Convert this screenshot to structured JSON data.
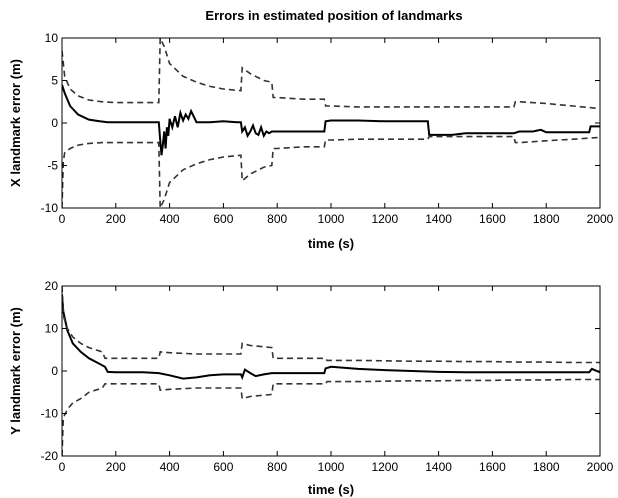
{
  "figure": {
    "title": "Errors in estimated position of landmarks"
  },
  "chart_data": [
    {
      "type": "line",
      "title": "Errors in estimated position of landmarks",
      "xlabel": "time (s)",
      "ylabel": "X landmark error (m)",
      "xlim": [
        0,
        2000
      ],
      "ylim": [
        -10,
        10
      ],
      "xticks": [
        0,
        200,
        400,
        600,
        800,
        1000,
        1200,
        1400,
        1600,
        1800,
        2000
      ],
      "yticks": [
        -10,
        -5,
        0,
        5,
        10
      ],
      "grid": false,
      "series": [
        {
          "style": "solid",
          "color": "#000000",
          "x": [
            0,
            10,
            30,
            60,
            100,
            140,
            170,
            200,
            250,
            300,
            350,
            360,
            365,
            370,
            375,
            380,
            385,
            390,
            395,
            400,
            410,
            420,
            430,
            440,
            450,
            460,
            470,
            480,
            500,
            550,
            600,
            650,
            665,
            670,
            680,
            690,
            700,
            710,
            720,
            730,
            740,
            750,
            760,
            770,
            780,
            800,
            850,
            900,
            950,
            975,
            980,
            1000,
            1050,
            1100,
            1200,
            1300,
            1360,
            1365,
            1400,
            1450,
            1500,
            1600,
            1680,
            1700,
            1750,
            1780,
            1800,
            1900,
            1960,
            1965,
            2000
          ],
          "y": [
            4.5,
            3.5,
            2.0,
            1.0,
            0.4,
            0.2,
            0.1,
            0.1,
            0.1,
            0.1,
            0.1,
            0.1,
            -2.0,
            -3.8,
            -2.5,
            -1.0,
            -3.0,
            -0.5,
            -1.5,
            0.5,
            -0.5,
            0.8,
            -0.5,
            1.2,
            0.3,
            1.0,
            0.5,
            1.4,
            0.1,
            0.1,
            0.2,
            0.1,
            0.1,
            -1.0,
            -0.5,
            -1.5,
            -1.0,
            -0.3,
            -1.2,
            -1.4,
            -0.5,
            -1.5,
            -1.0,
            -1.2,
            -1.0,
            -1.0,
            -1.0,
            -1.0,
            -1.0,
            -1.0,
            0.2,
            0.3,
            0.3,
            0.3,
            0.2,
            0.2,
            0.2,
            -1.4,
            -1.4,
            -1.4,
            -1.2,
            -1.2,
            -1.2,
            -1.0,
            -1.0,
            -0.8,
            -1.1,
            -1.1,
            -1.1,
            -0.4,
            -0.4
          ]
        },
        {
          "style": "dashed",
          "color": "#333333",
          "x": [
            0,
            10,
            30,
            60,
            100,
            150,
            200,
            300,
            360,
            365,
            380,
            400,
            450,
            500,
            550,
            600,
            665,
            670,
            700,
            750,
            780,
            785,
            800,
            900,
            975,
            980,
            1000,
            1100,
            1200,
            1300,
            1400,
            1500,
            1600,
            1680,
            1685,
            1700,
            1800,
            1900,
            2000
          ],
          "y": [
            8.5,
            5.5,
            4.0,
            3.2,
            2.7,
            2.5,
            2.4,
            2.4,
            2.4,
            10.0,
            9.0,
            7.0,
            5.5,
            4.8,
            4.3,
            4.0,
            3.8,
            6.5,
            5.8,
            5.0,
            4.8,
            3.0,
            3.0,
            2.8,
            2.8,
            2.0,
            2.0,
            1.9,
            1.9,
            1.9,
            1.9,
            1.9,
            1.9,
            1.9,
            2.5,
            2.5,
            2.3,
            2.0,
            1.7
          ]
        },
        {
          "style": "dashed",
          "color": "#333333",
          "x": [
            0,
            5,
            10,
            30,
            60,
            100,
            150,
            200,
            300,
            360,
            365,
            380,
            400,
            450,
            500,
            550,
            600,
            665,
            670,
            700,
            750,
            780,
            785,
            800,
            900,
            975,
            980,
            1000,
            1100,
            1200,
            1300,
            1360,
            1365,
            1400,
            1500,
            1600,
            1680,
            1685,
            1700,
            1800,
            1900,
            2000
          ],
          "y": [
            -10.0,
            -4.5,
            -3.5,
            -3.0,
            -2.6,
            -2.4,
            -2.3,
            -2.3,
            -2.3,
            -2.3,
            -10.0,
            -9.0,
            -7.0,
            -5.5,
            -4.8,
            -4.3,
            -4.0,
            -3.8,
            -6.8,
            -6.0,
            -5.2,
            -5.0,
            -3.0,
            -3.0,
            -2.8,
            -2.8,
            -2.0,
            -2.0,
            -1.9,
            -1.9,
            -1.9,
            -1.9,
            -1.6,
            -1.6,
            -1.6,
            -1.6,
            -1.6,
            -2.3,
            -2.3,
            -2.1,
            -1.9,
            -1.7
          ]
        }
      ]
    },
    {
      "type": "line",
      "xlabel": "time (s)",
      "ylabel": "Y landmark error (m)",
      "xlim": [
        0,
        2000
      ],
      "ylim": [
        -20,
        20
      ],
      "xticks": [
        0,
        200,
        400,
        600,
        800,
        1000,
        1200,
        1400,
        1600,
        1800,
        2000
      ],
      "yticks": [
        -20,
        -10,
        0,
        10,
        20
      ],
      "grid": false,
      "series": [
        {
          "style": "solid",
          "color": "#000000",
          "x": [
            0,
            5,
            20,
            40,
            70,
            100,
            130,
            160,
            170,
            200,
            250,
            300,
            360,
            400,
            450,
            500,
            550,
            600,
            665,
            670,
            680,
            700,
            720,
            750,
            780,
            800,
            900,
            975,
            980,
            1000,
            1100,
            1200,
            1300,
            1400,
            1500,
            1600,
            1700,
            1800,
            1900,
            1960,
            1970,
            2000
          ],
          "y": [
            18.0,
            14.0,
            9.5,
            6.5,
            4.5,
            3.0,
            2.0,
            1.0,
            -0.2,
            -0.3,
            -0.3,
            -0.3,
            -0.5,
            -1.0,
            -1.8,
            -1.5,
            -1.0,
            -0.8,
            -0.8,
            -1.5,
            0.3,
            -0.5,
            -1.2,
            -0.8,
            -0.5,
            -0.5,
            -0.5,
            -0.5,
            0.6,
            1.0,
            0.5,
            0.2,
            0.0,
            -0.2,
            -0.3,
            -0.3,
            -0.3,
            -0.3,
            -0.3,
            -0.3,
            0.5,
            -0.3
          ]
        },
        {
          "style": "dashed",
          "color": "#333333",
          "x": [
            0,
            5,
            20,
            40,
            70,
            100,
            150,
            160,
            200,
            300,
            360,
            365,
            400,
            500,
            600,
            665,
            670,
            700,
            780,
            785,
            800,
            900,
            980,
            985,
            1000,
            1100,
            1200,
            1300,
            1400,
            1500,
            1600,
            1700,
            1800,
            1900,
            1950,
            2000
          ],
          "y": [
            20.0,
            13.0,
            10.0,
            8.0,
            6.5,
            5.5,
            4.5,
            3.0,
            3.0,
            3.0,
            3.0,
            4.5,
            4.3,
            4.0,
            4.0,
            4.0,
            6.5,
            6.0,
            5.5,
            3.0,
            3.0,
            3.0,
            3.0,
            2.5,
            2.5,
            2.5,
            2.4,
            2.3,
            2.3,
            2.2,
            2.2,
            2.1,
            2.1,
            2.0,
            2.0,
            2.0
          ]
        },
        {
          "style": "dashed",
          "color": "#333333",
          "x": [
            0,
            5,
            20,
            40,
            70,
            100,
            150,
            160,
            200,
            300,
            360,
            365,
            400,
            500,
            600,
            665,
            670,
            700,
            780,
            785,
            800,
            900,
            980,
            985,
            1000,
            1100,
            1200,
            1300,
            1400,
            1500,
            1600,
            1700,
            1800,
            1900,
            1950,
            2000
          ],
          "y": [
            -20.0,
            -11.0,
            -9.0,
            -7.5,
            -6.5,
            -5.0,
            -4.0,
            -3.0,
            -3.0,
            -3.0,
            -3.0,
            -4.5,
            -4.3,
            -4.0,
            -4.0,
            -4.0,
            -6.5,
            -6.0,
            -5.5,
            -3.0,
            -3.0,
            -3.0,
            -3.0,
            -2.5,
            -2.5,
            -2.5,
            -2.4,
            -2.3,
            -2.3,
            -2.2,
            -2.2,
            -2.1,
            -2.1,
            -2.0,
            -2.0,
            -2.0
          ]
        }
      ]
    }
  ]
}
